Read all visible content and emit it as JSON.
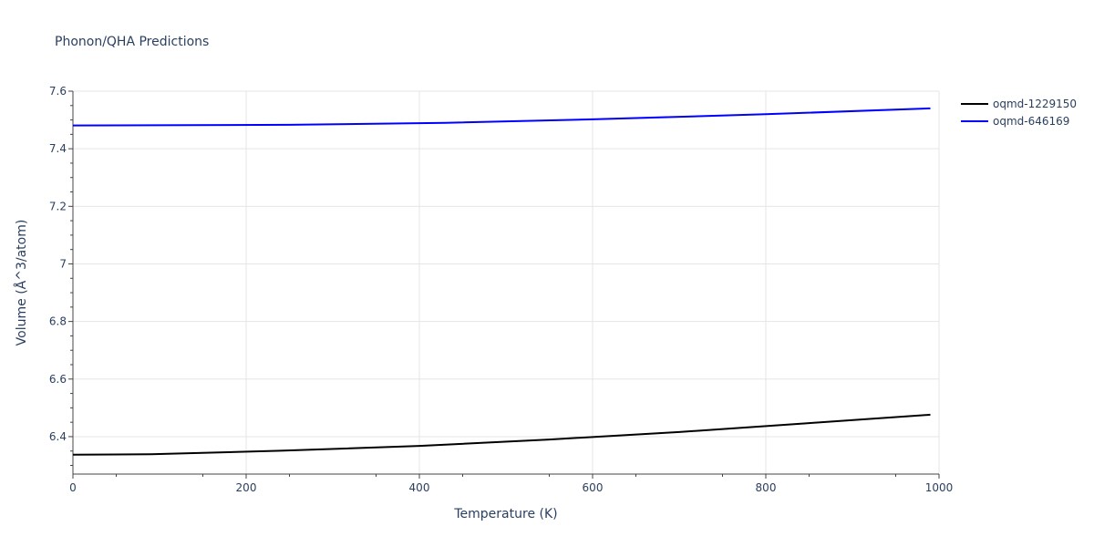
{
  "chart_data": {
    "type": "line",
    "title": "Phonon/QHA Predictions",
    "xlabel": "Temperature (K)",
    "ylabel": "Volume (Å^3/atom)",
    "xlim": [
      0,
      1000
    ],
    "ylim": [
      6.27,
      7.6
    ],
    "x_ticks": [
      0,
      200,
      400,
      600,
      800,
      1000
    ],
    "y_ticks": [
      6.4,
      6.6,
      6.8,
      7,
      7.2,
      7.4,
      7.6
    ],
    "x_tick_labels": [
      "0",
      "200",
      "400",
      "600",
      "800",
      "1000"
    ],
    "y_tick_labels": [
      "6.4",
      "6.6",
      "6.8",
      "7",
      "7.2",
      "7.4",
      "7.6"
    ],
    "grid": true,
    "legend_position": "top-right",
    "series": [
      {
        "name": "oqmd-1229150",
        "color": "#000000",
        "x": [
          0,
          90,
          240,
          400,
          550,
          700,
          850,
          990
        ],
        "y": [
          6.337,
          6.339,
          6.351,
          6.368,
          6.39,
          6.416,
          6.447,
          6.476
        ]
      },
      {
        "name": "oqmd-646169",
        "color": "#0000ff",
        "x": [
          0,
          250,
          430,
          600,
          800,
          990
        ],
        "y": [
          7.481,
          7.483,
          7.49,
          7.502,
          7.52,
          7.54
        ]
      }
    ]
  }
}
